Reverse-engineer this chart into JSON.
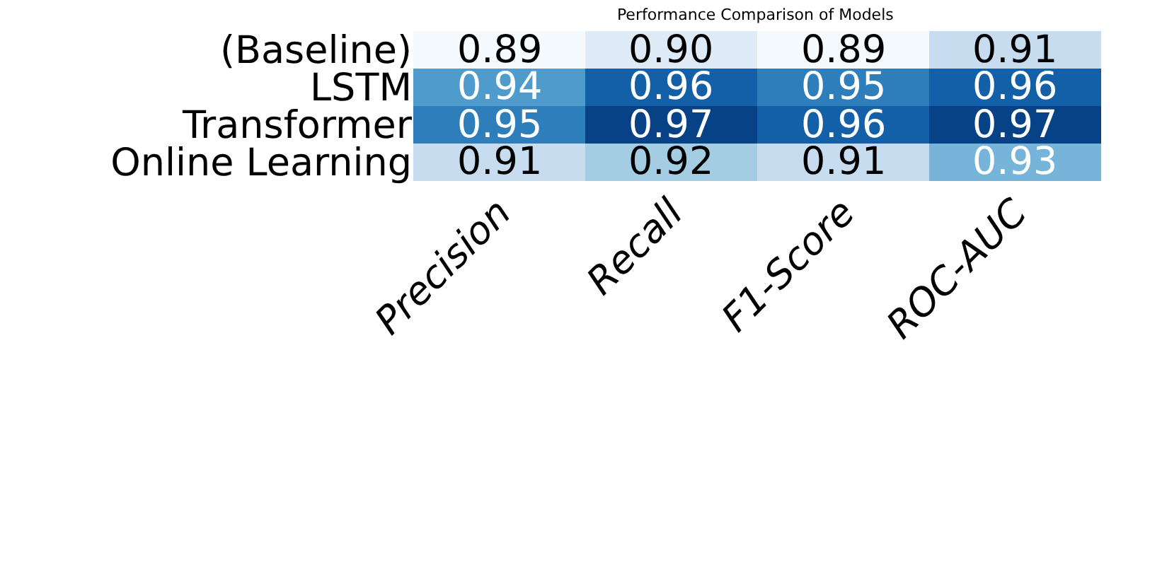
{
  "chart_data": {
    "type": "heatmap",
    "title": "Performance Comparison of Models",
    "categories": [
      "Precision",
      "Recall",
      "F1-Score",
      "ROC-AUC"
    ],
    "y_categories": [
      "(Baseline)",
      "LSTM",
      "Transformer",
      "Online Learning"
    ],
    "cells": [
      [
        0.89,
        0.9,
        0.89,
        0.91
      ],
      [
        0.94,
        0.96,
        0.95,
        0.96
      ],
      [
        0.95,
        0.97,
        0.96,
        0.97
      ],
      [
        0.91,
        0.92,
        0.91,
        0.93
      ]
    ],
    "cell_labels": [
      [
        "0.89",
        "0.90",
        "0.89",
        "0.91"
      ],
      [
        "0.94",
        "0.96",
        "0.95",
        "0.96"
      ],
      [
        "0.95",
        "0.97",
        "0.96",
        "0.97"
      ],
      [
        "0.91",
        "0.92",
        "0.91",
        "0.93"
      ]
    ]
  }
}
